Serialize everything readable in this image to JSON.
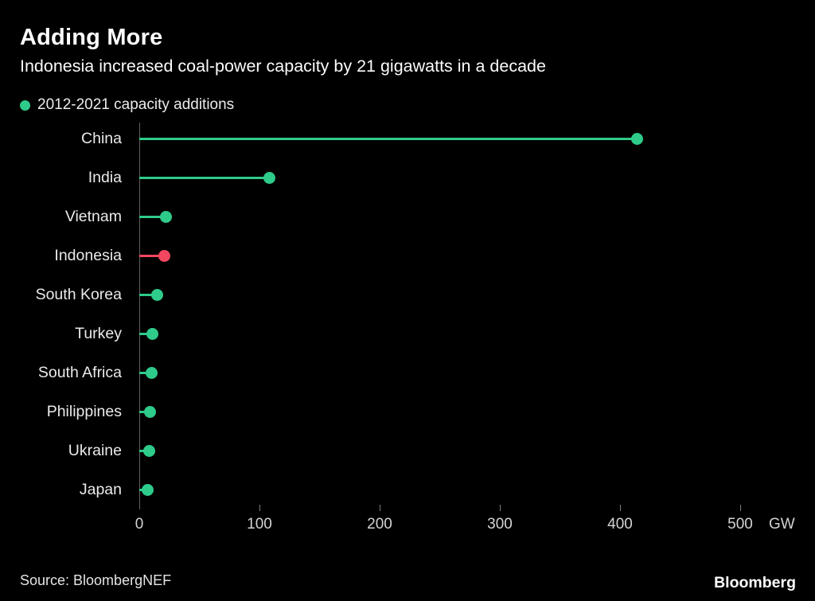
{
  "header": {
    "title": "Adding More",
    "subtitle": "Indonesia increased coal-power capacity by 21 gigawatts in a decade"
  },
  "legend": {
    "label": "2012-2021 capacity additions"
  },
  "chart_data": {
    "type": "lollipop",
    "title": "Adding More",
    "subtitle": "Indonesia increased coal-power capacity by 21 gigawatts in a decade",
    "legend": "2012-2021 capacity additions",
    "categories": [
      "China",
      "India",
      "Vietnam",
      "Indonesia",
      "South Korea",
      "Turkey",
      "South Africa",
      "Philippines",
      "Ukraine",
      "Japan"
    ],
    "values": [
      414,
      108,
      22,
      21,
      15,
      11,
      10,
      9,
      8,
      7
    ],
    "highlight_category": "Indonesia",
    "colors": {
      "default": "#2ecb8b",
      "highlight": "#f3465f"
    },
    "x_ticks": [
      0,
      100,
      200,
      300,
      400,
      500
    ],
    "xlim": [
      0,
      500
    ],
    "xlabel_unit": "GW",
    "grid": "off",
    "legend_position": "top-left"
  },
  "footer": {
    "source": "Source: BloombergNEF",
    "brand": "Bloomberg"
  }
}
